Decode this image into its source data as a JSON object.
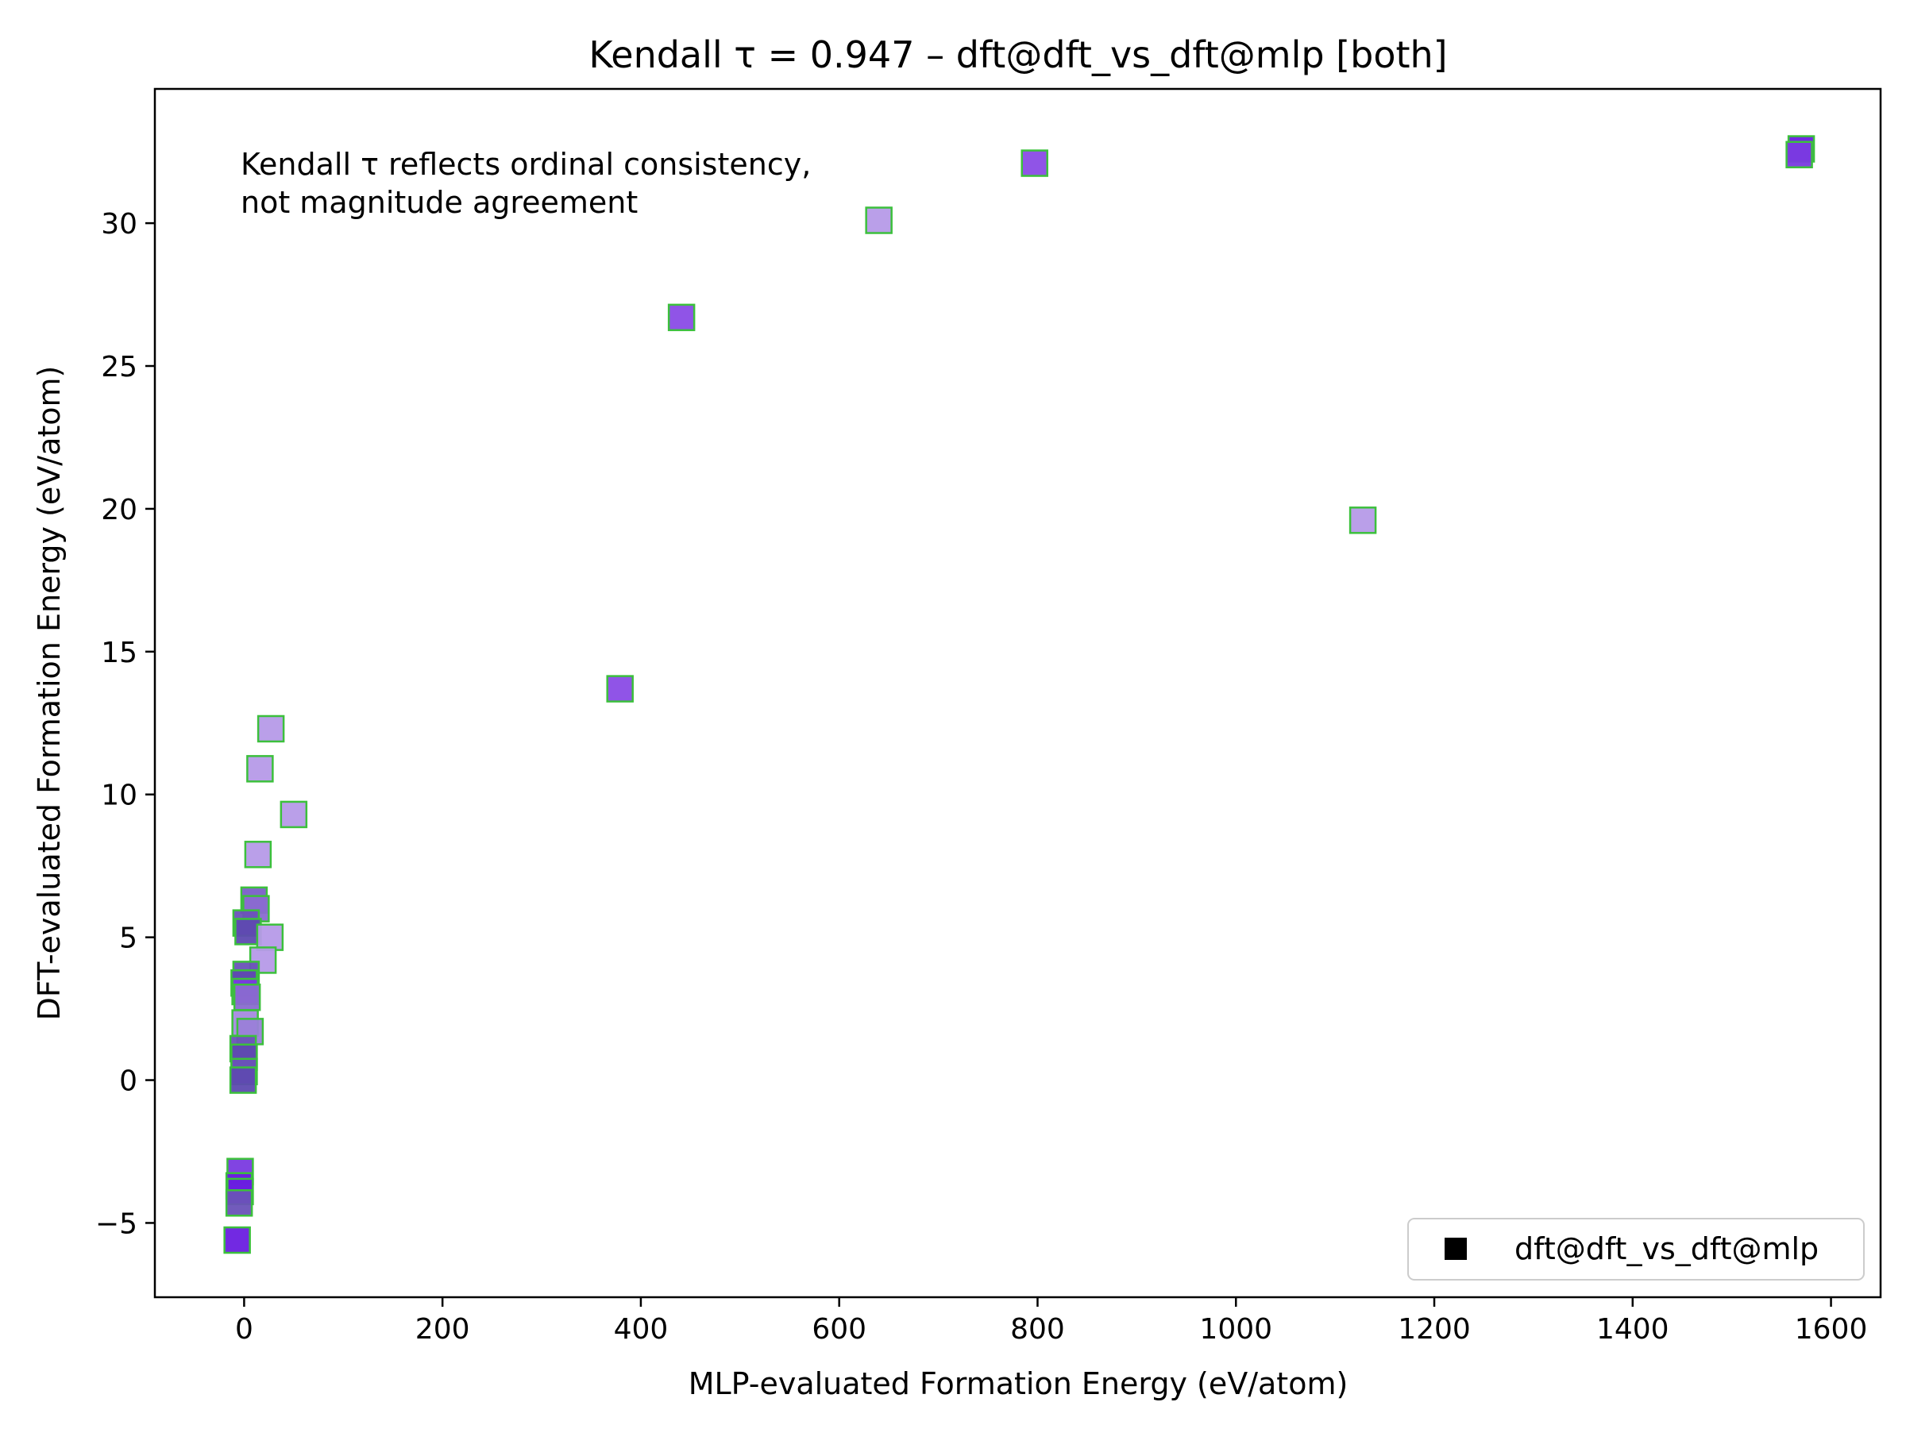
{
  "chart_data": {
    "type": "scatter",
    "title": "Kendall τ = 0.947 – dft@dft_vs_dft@mlp [both]",
    "xlabel": "MLP-evaluated Formation Energy (eV/atom)",
    "ylabel": "DFT-evaluated Formation Energy (eV/atom)",
    "xlim": [
      -90,
      1650
    ],
    "ylim": [
      -7.6,
      34.7
    ],
    "xticks": [
      0,
      200,
      400,
      600,
      800,
      1000,
      1200,
      1400,
      1600
    ],
    "yticks": [
      -5,
      0,
      5,
      10,
      15,
      20,
      25,
      30
    ],
    "grid": false,
    "legend_placement": "bottom-right",
    "annotation": [
      "Kendall τ reflects ordinal consistency,",
      "not magnitude agreement"
    ],
    "marker": "square",
    "marker_edge_color": "#3cc03c",
    "series": [
      {
        "name": "dft@dft_vs_dft@mlp",
        "legend_color": "#000000",
        "points": [
          {
            "x": 1570,
            "y": 32.6,
            "color": "#6a1de0"
          },
          {
            "x": 1568,
            "y": 32.4,
            "color": "#7a3ae0"
          },
          {
            "x": 797,
            "y": 32.1,
            "color": "#8a4be6"
          },
          {
            "x": 640,
            "y": 30.1,
            "color": "#b69ae8"
          },
          {
            "x": 441,
            "y": 26.7,
            "color": "#8a4be6"
          },
          {
            "x": 1128,
            "y": 19.6,
            "color": "#b69ae8"
          },
          {
            "x": 379,
            "y": 13.7,
            "color": "#8a4be6"
          },
          {
            "x": 27,
            "y": 12.3,
            "color": "#b69ae8"
          },
          {
            "x": 16,
            "y": 10.9,
            "color": "#b69ae8"
          },
          {
            "x": 50,
            "y": 9.3,
            "color": "#b69ae8"
          },
          {
            "x": 14,
            "y": 7.9,
            "color": "#b69ae8"
          },
          {
            "x": 10,
            "y": 6.3,
            "color": "#7a5ec8"
          },
          {
            "x": 12,
            "y": 6.0,
            "color": "#8a6ad0"
          },
          {
            "x": 2,
            "y": 5.5,
            "color": "#6a52b8"
          },
          {
            "x": 4,
            "y": 5.2,
            "color": "#5e4ab0"
          },
          {
            "x": 26,
            "y": 5.0,
            "color": "#b69ae8"
          },
          {
            "x": 19,
            "y": 4.2,
            "color": "#b69ae8"
          },
          {
            "x": 2,
            "y": 3.7,
            "color": "#6a52b8"
          },
          {
            "x": 0,
            "y": 3.4,
            "color": "#5e4ab0"
          },
          {
            "x": 1,
            "y": 3.1,
            "color": "#7a3ae0"
          },
          {
            "x": 3,
            "y": 2.9,
            "color": "#8a6ad0"
          },
          {
            "x": 1,
            "y": 2.0,
            "color": "#a58ae0"
          },
          {
            "x": 6,
            "y": 1.7,
            "color": "#9a80d8"
          },
          {
            "x": -1,
            "y": 1.1,
            "color": "#6a52b8"
          },
          {
            "x": 0,
            "y": 0.8,
            "color": "#5e4ab0"
          },
          {
            "x": 0,
            "y": 0.3,
            "color": "#6a52b8"
          },
          {
            "x": -1,
            "y": 0.0,
            "color": "#5e4ab0"
          },
          {
            "x": -4,
            "y": -3.2,
            "color": "#7a3ae0"
          },
          {
            "x": -5,
            "y": -3.7,
            "color": "#6a1de0"
          },
          {
            "x": -4,
            "y": -3.9,
            "color": "#6a1de0"
          },
          {
            "x": -5,
            "y": -4.3,
            "color": "#6a52b8"
          },
          {
            "x": -7,
            "y": -5.6,
            "color": "#6a1de0"
          }
        ]
      }
    ]
  }
}
